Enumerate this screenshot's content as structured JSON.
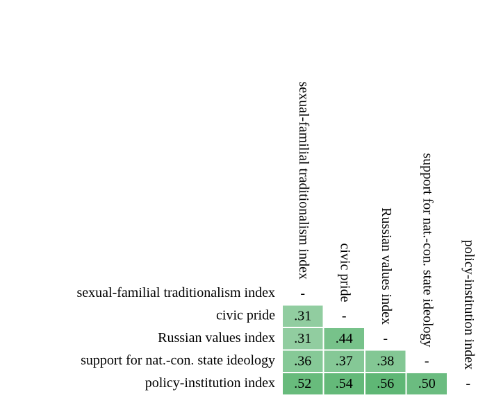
{
  "chart_data": {
    "type": "heatmap",
    "rows": [
      "sexual-familial traditionalism index",
      "civic pride",
      "Russian values index",
      "support for nat.-con. state ideology",
      "policy-institution index"
    ],
    "columns": [
      "sexual-familial traditionalism index",
      "civic pride",
      "Russian values index",
      "support for nat.-con. state ideology",
      "policy-institution index"
    ],
    "values": [
      [
        null
      ],
      [
        0.31,
        null
      ],
      [
        0.31,
        0.44,
        null
      ],
      [
        0.36,
        0.37,
        0.38,
        null
      ],
      [
        0.52,
        0.54,
        0.56,
        0.5,
        null
      ]
    ],
    "value_labels": [
      [
        "-"
      ],
      [
        ".31",
        "-"
      ],
      [
        ".31",
        ".44",
        "-"
      ],
      [
        ".36",
        ".37",
        ".38",
        "-"
      ],
      [
        ".52",
        ".54",
        ".56",
        ".50",
        "-"
      ]
    ],
    "color": "#3aa655"
  }
}
